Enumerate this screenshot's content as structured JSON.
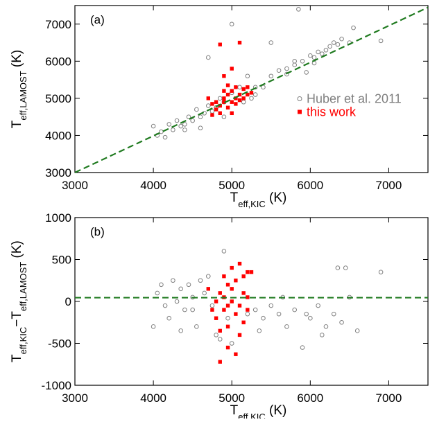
{
  "chart_data": [
    {
      "type": "scatter",
      "label": "(a)",
      "xlabel": [
        {
          "text": "T"
        },
        {
          "text": "eff,KIC",
          "sub": true
        },
        {
          "text": " (K)"
        }
      ],
      "ylabel": [
        {
          "text": "T"
        },
        {
          "text": "eff,LAMOST",
          "sub": true
        },
        {
          "text": " (K)"
        }
      ],
      "xlim": [
        3000,
        7500
      ],
      "ylim": [
        3000,
        7500
      ],
      "xticks": [
        3000,
        4000,
        5000,
        6000,
        7000
      ],
      "yticks": [
        3000,
        4000,
        5000,
        6000,
        7000
      ],
      "legend": "right",
      "ref_line": {
        "x": [
          3000,
          7500
        ],
        "y": [
          3000,
          7450
        ],
        "color": "#1f7a1f"
      },
      "series": [
        {
          "name": "Huber et al. 2011",
          "color": "#808080",
          "marker": "circle",
          "x": [
            4000,
            4050,
            4100,
            4150,
            4200,
            4250,
            4300,
            4350,
            4400,
            4450,
            4500,
            4550,
            4600,
            4650,
            4700,
            4700,
            4750,
            4800,
            4850,
            4900,
            5000,
            5100,
            5200,
            5250,
            5300,
            5400,
            5500,
            5600,
            5700,
            5800,
            5900,
            5950,
            6000,
            6050,
            6100,
            6150,
            6200,
            6250,
            6300,
            6350,
            6400,
            6500,
            6550,
            6900,
            5850,
            5800,
            5300,
            5500,
            5000,
            4600,
            4400,
            5700,
            6050,
            4900,
            5150
          ],
          "y": [
            4250,
            4000,
            4100,
            3950,
            4300,
            4150,
            4400,
            4250,
            4300,
            4500,
            4400,
            4700,
            4500,
            4600,
            4800,
            6100,
            4650,
            4750,
            5000,
            4900,
            5150,
            5300,
            5600,
            5000,
            5100,
            5300,
            5600,
            5750,
            5800,
            5900,
            6000,
            5700,
            6150,
            6100,
            6250,
            6200,
            6300,
            6400,
            6500,
            6450,
            6600,
            6500,
            6900,
            6550,
            7400,
            6000,
            5300,
            6500,
            7000,
            4200,
            4150,
            5650,
            5950,
            4500,
            4900
          ]
        },
        {
          "name": "this work",
          "color": "#ff0000",
          "marker": "square",
          "x": [
            4750,
            4800,
            4850,
            4850,
            4900,
            4900,
            4950,
            4950,
            5000,
            5000,
            5050,
            5050,
            5100,
            5100,
            5100,
            5150,
            5150,
            5200,
            5200,
            4700,
            4750,
            5000,
            4950,
            4900,
            5000,
            4850,
            5250,
            4800,
            5050,
            4900
          ],
          "y": [
            4550,
            4700,
            4800,
            6450,
            4900,
            5000,
            4750,
            5100,
            4900,
            5200,
            5000,
            5300,
            4950,
            5100,
            6500,
            5000,
            5250,
            5100,
            5300,
            5000,
            4850,
            4600,
            5350,
            5600,
            5800,
            4600,
            5150,
            4900,
            4850,
            5200
          ]
        }
      ]
    },
    {
      "type": "scatter",
      "label": "(b)",
      "xlabel": [
        {
          "text": "T"
        },
        {
          "text": "eff,KIC",
          "sub": true
        },
        {
          "text": " (K)"
        }
      ],
      "ylabel": [
        {
          "text": "T"
        },
        {
          "text": "eff,KIC",
          "sub": true
        },
        {
          "text": "−T"
        },
        {
          "text": "eff,LAMOST",
          "sub": true
        },
        {
          "text": " (K)"
        }
      ],
      "xlim": [
        3000,
        7500
      ],
      "ylim": [
        -1000,
        1000
      ],
      "xticks": [
        3000,
        4000,
        5000,
        6000,
        7000
      ],
      "yticks": [
        -1000,
        -500,
        0,
        500,
        1000
      ],
      "ref_line": {
        "x": [
          3000,
          7500
        ],
        "y": [
          45,
          45
        ],
        "color": "#1f7a1f"
      },
      "series": [
        {
          "color": "#808080",
          "marker": "circle",
          "x": [
            4000,
            4050,
            4100,
            4150,
            4200,
            4250,
            4300,
            4350,
            4400,
            4450,
            4500,
            4550,
            4600,
            4650,
            4700,
            4750,
            4800,
            4900,
            4950,
            5000,
            5300,
            5400,
            5500,
            5600,
            5700,
            5800,
            5900,
            6000,
            6100,
            6200,
            6300,
            6350,
            6400,
            6450,
            6500,
            6600,
            6900,
            5200,
            5350,
            5650,
            5950,
            6150,
            4850,
            4500,
            4350
          ],
          "y": [
            -300,
            100,
            200,
            -50,
            -200,
            250,
            0,
            150,
            -100,
            200,
            50,
            -300,
            250,
            100,
            300,
            -50,
            -400,
            600,
            -200,
            -500,
            -100,
            -200,
            -50,
            -150,
            -300,
            -100,
            -550,
            -200,
            -50,
            -300,
            -150,
            400,
            -250,
            400,
            50,
            -350,
            350,
            -150,
            -350,
            50,
            -150,
            -400,
            -450,
            -100,
            -350
          ]
        },
        {
          "color": "#ff0000",
          "marker": "square",
          "x": [
            4800,
            4850,
            4850,
            4900,
            4900,
            4950,
            4950,
            5000,
            5000,
            5050,
            5050,
            5100,
            5100,
            5150,
            5150,
            5200,
            5200,
            4750,
            4700,
            4850,
            5050,
            4950,
            5000,
            4900,
            5100,
            4800,
            5150,
            5200,
            5250,
            4950
          ],
          "y": [
            -200,
            100,
            -350,
            300,
            -100,
            200,
            -300,
            0,
            400,
            -150,
            250,
            -50,
            450,
            100,
            -250,
            50,
            350,
            -100,
            150,
            -720,
            -630,
            -550,
            150,
            50,
            -400,
            0,
            300,
            -100,
            350,
            -50
          ]
        }
      ]
    }
  ]
}
